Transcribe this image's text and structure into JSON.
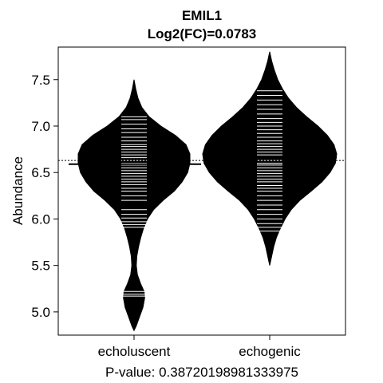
{
  "chart_data": {
    "type": "beanplot",
    "title": "EMIL1",
    "subtitle": "Log2(FC)=0.0783",
    "xlabel": "P-value: 0.38720198981333975",
    "ylabel": "Abundance",
    "ylim": [
      4.75,
      7.85
    ],
    "yticks": [
      5.0,
      5.5,
      6.0,
      6.5,
      7.0,
      7.5
    ],
    "ytick_labels": [
      "5.0",
      "5.5",
      "6.0",
      "6.5",
      "7.0",
      "7.5"
    ],
    "overall_mean": 6.63,
    "categories": [
      "echoluscent",
      "echogenic"
    ],
    "series": [
      {
        "mean": 6.59,
        "density": [
          [
            4.8,
            0.0
          ],
          [
            4.85,
            0.04
          ],
          [
            4.95,
            0.1
          ],
          [
            5.05,
            0.16
          ],
          [
            5.15,
            0.19
          ],
          [
            5.22,
            0.18
          ],
          [
            5.3,
            0.12
          ],
          [
            5.4,
            0.06
          ],
          [
            5.5,
            0.04
          ],
          [
            5.6,
            0.05
          ],
          [
            5.7,
            0.08
          ],
          [
            5.8,
            0.12
          ],
          [
            5.9,
            0.17
          ],
          [
            6.0,
            0.24
          ],
          [
            6.1,
            0.35
          ],
          [
            6.2,
            0.52
          ],
          [
            6.3,
            0.72
          ],
          [
            6.4,
            0.86
          ],
          [
            6.5,
            0.96
          ],
          [
            6.6,
            1.0
          ],
          [
            6.7,
            1.0
          ],
          [
            6.8,
            0.93
          ],
          [
            6.9,
            0.74
          ],
          [
            7.0,
            0.48
          ],
          [
            7.1,
            0.27
          ],
          [
            7.2,
            0.14
          ],
          [
            7.3,
            0.07
          ],
          [
            7.4,
            0.03
          ],
          [
            7.5,
            0.0
          ]
        ],
        "points": [
          5.17,
          5.19,
          5.22,
          5.91,
          5.94,
          5.97,
          6.01,
          6.05,
          6.1,
          6.2,
          6.25,
          6.3,
          6.33,
          6.37,
          6.4,
          6.43,
          6.46,
          6.49,
          6.52,
          6.55,
          6.58,
          6.6,
          6.63,
          6.66,
          6.69,
          6.72,
          6.75,
          6.78,
          6.8,
          6.84,
          6.88,
          6.93,
          6.97,
          7.02,
          7.07,
          7.1
        ]
      },
      {
        "mean": 6.66,
        "density": [
          [
            5.5,
            0.0
          ],
          [
            5.6,
            0.03
          ],
          [
            5.7,
            0.06
          ],
          [
            5.8,
            0.1
          ],
          [
            5.9,
            0.16
          ],
          [
            6.0,
            0.23
          ],
          [
            6.1,
            0.32
          ],
          [
            6.2,
            0.45
          ],
          [
            6.3,
            0.62
          ],
          [
            6.4,
            0.78
          ],
          [
            6.5,
            0.9
          ],
          [
            6.6,
            0.98
          ],
          [
            6.7,
            1.0
          ],
          [
            6.8,
            0.96
          ],
          [
            6.9,
            0.86
          ],
          [
            7.0,
            0.72
          ],
          [
            7.1,
            0.55
          ],
          [
            7.2,
            0.4
          ],
          [
            7.3,
            0.28
          ],
          [
            7.4,
            0.19
          ],
          [
            7.5,
            0.12
          ],
          [
            7.6,
            0.07
          ],
          [
            7.7,
            0.03
          ],
          [
            7.8,
            0.0
          ]
        ],
        "points": [
          5.87,
          5.91,
          5.95,
          6.0,
          6.05,
          6.1,
          6.15,
          6.2,
          6.25,
          6.3,
          6.33,
          6.36,
          6.4,
          6.43,
          6.46,
          6.49,
          6.52,
          6.55,
          6.58,
          6.6,
          6.63,
          6.66,
          6.69,
          6.72,
          6.75,
          6.78,
          6.81,
          6.84,
          6.88,
          6.92,
          6.96,
          7.0,
          7.04,
          7.08,
          7.13,
          7.18,
          7.23,
          7.28,
          7.33,
          7.38
        ]
      }
    ]
  }
}
